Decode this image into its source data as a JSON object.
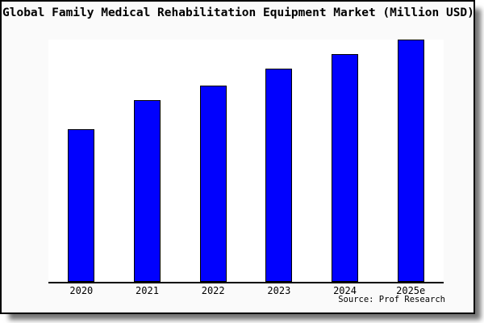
{
  "title": "Global Family Medical Rehabilitation Equipment Market (Million USD)",
  "source": "Source: Prof Research",
  "colors": {
    "bar_fill": "#0101fe",
    "bar_border": "#000000",
    "frame_background": "#fafafa",
    "plot_background": "#ffffff",
    "axis": "#000000",
    "frame_border": "#000000"
  },
  "chart_data": {
    "type": "bar",
    "title": "Global Family Medical Rehabilitation Equipment Market (Million USD)",
    "categories": [
      "2020",
      "2021",
      "2022",
      "2023",
      "2024",
      "2025e"
    ],
    "values": [
      63,
      75,
      81,
      88,
      94,
      100
    ],
    "values_note": "relative index estimated from bar heights; no y-axis tick labels are shown (2025e = 100)",
    "xlabel": "",
    "ylabel": "",
    "ylim": [
      0,
      100
    ],
    "grid": false,
    "legend": false,
    "y_axis_visible": false,
    "source_annotation": "Source: Prof Research"
  }
}
